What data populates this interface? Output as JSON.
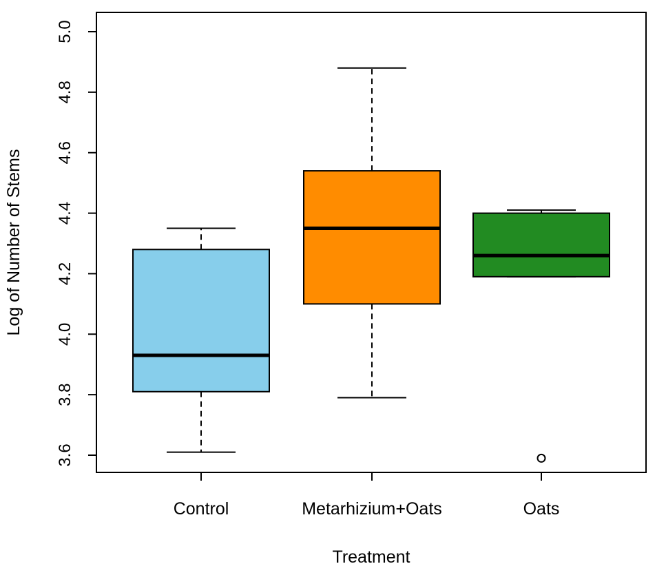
{
  "chart_data": {
    "type": "boxplot",
    "title": "",
    "xlabel": "Treatment",
    "ylabel": "Log of Number of Stems",
    "ylim": [
      3.6,
      5.0
    ],
    "yticks": [
      "3.6",
      "3.8",
      "4.0",
      "4.2",
      "4.4",
      "4.6",
      "4.8",
      "5.0"
    ],
    "grid": false,
    "categories": [
      "Control",
      "Metarhizium+Oats",
      "Oats"
    ],
    "series": [
      {
        "name": "Control",
        "color": "#87CEEB",
        "whisker_low": 3.61,
        "q1": 3.81,
        "median": 3.93,
        "q3": 4.28,
        "whisker_high": 4.35,
        "outliers": []
      },
      {
        "name": "Metarhizium+Oats",
        "color": "#FF8C00",
        "whisker_low": 3.79,
        "q1": 4.1,
        "median": 4.35,
        "q3": 4.54,
        "whisker_high": 4.88,
        "outliers": []
      },
      {
        "name": "Oats",
        "color": "#228B22",
        "whisker_low": 4.19,
        "q1": 4.19,
        "median": 4.26,
        "q3": 4.4,
        "whisker_high": 4.41,
        "outliers": [
          3.59
        ]
      }
    ]
  }
}
